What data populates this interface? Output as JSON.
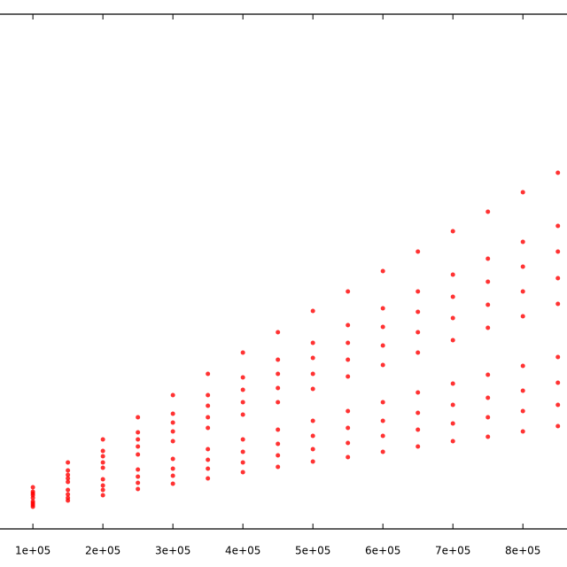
{
  "chart_data": {
    "type": "scatter",
    "color": "#ff0000",
    "xlim": [
      53000,
      863000
    ],
    "ylim": [
      0,
      581
    ],
    "xticks": [
      {
        "value": 100000,
        "label": "1e+05"
      },
      {
        "value": 200000,
        "label": "2e+05"
      },
      {
        "value": 300000,
        "label": "3e+05"
      },
      {
        "value": 400000,
        "label": "4e+05"
      },
      {
        "value": 500000,
        "label": "5e+05"
      },
      {
        "value": 600000,
        "label": "6e+05"
      },
      {
        "value": 700000,
        "label": "7e+05"
      },
      {
        "value": 800000,
        "label": "8e+05"
      }
    ],
    "x": [
      100000,
      150000,
      200000,
      250000,
      300000,
      350000,
      400000,
      450000,
      500000,
      550000,
      600000,
      650000,
      700000,
      750000,
      800000,
      850000,
      100000,
      150000,
      200000,
      250000,
      300000,
      350000,
      400000,
      450000,
      500000,
      550000,
      600000,
      650000,
      700000,
      750000,
      800000,
      850000,
      100000,
      150000,
      200000,
      250000,
      300000,
      350000,
      400000,
      450000,
      500000,
      550000,
      600000,
      650000,
      700000,
      750000,
      800000,
      850000,
      100000,
      150000,
      200000,
      250000,
      300000,
      350000,
      400000,
      450000,
      500000,
      550000,
      600000,
      650000,
      700000,
      750000,
      800000,
      850000,
      100000,
      150000,
      200000,
      250000,
      300000,
      350000,
      400000,
      450000,
      500000,
      550000,
      600000,
      650000,
      700000,
      750000,
      800000,
      850000,
      100000,
      150000,
      200000,
      250000,
      300000,
      350000,
      400000,
      450000,
      500000,
      550000,
      600000,
      650000,
      700000,
      750000,
      800000,
      850000,
      100000,
      150000,
      200000,
      250000,
      300000,
      350000,
      400000,
      450000,
      500000,
      550000,
      600000,
      650000,
      700000,
      750000,
      800000,
      850000,
      100000,
      150000,
      200000,
      250000,
      300000,
      350000,
      400000,
      450000,
      500000,
      550000,
      600000,
      650000,
      700000,
      750000,
      800000,
      850000,
      100000,
      150000,
      200000,
      250000,
      300000,
      350000,
      400000,
      450000,
      500000,
      550000,
      600000,
      650000,
      700000,
      750000,
      800000,
      850000
    ],
    "y": [
      47,
      75,
      101,
      126,
      151,
      175,
      199,
      222,
      246,
      268,
      291,
      313,
      336,
      358,
      380,
      402,
      42,
      66,
      88,
      109,
      130,
      151,
      171,
      191,
      210,
      230,
      249,
      268,
      287,
      305,
      324,
      342,
      40,
      61,
      82,
      101,
      120,
      139,
      157,
      175,
      193,
      210,
      228,
      245,
      262,
      279,
      296,
      313,
      38,
      57,
      75,
      93,
      110,
      126,
      143,
      159,
      175,
      191,
      207,
      222,
      238,
      253,
      268,
      283,
      35,
      53,
      69,
      84,
      99,
      114,
      129,
      143,
      158,
      172,
      185,
      199,
      213,
      227,
      240,
      254,
      31,
      44,
      56,
      67,
      79,
      90,
      101,
      112,
      122,
      133,
      143,
      154,
      164,
      174,
      184,
      194,
      29,
      39,
      49,
      59,
      68,
      78,
      87,
      96,
      105,
      114,
      122,
      131,
      140,
      148,
      156,
      165,
      27,
      35,
      44,
      52,
      60,
      68,
      75,
      83,
      90,
      97,
      105,
      112,
      119,
      126,
      133,
      140,
      25,
      32,
      38,
      45,
      51,
      57,
      64,
      70,
      76,
      81,
      87,
      93,
      99,
      104,
      110,
      116
    ]
  }
}
